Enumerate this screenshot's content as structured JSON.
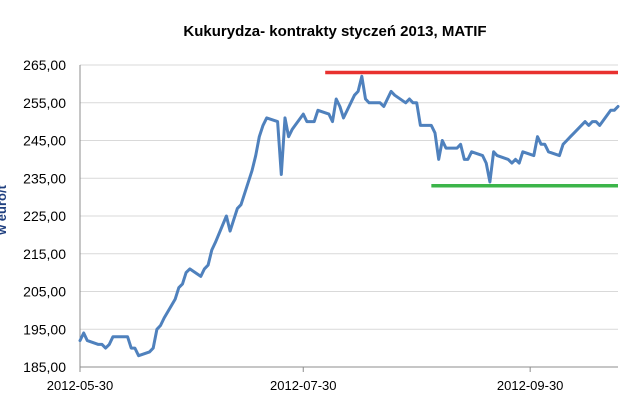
{
  "chart_data": {
    "type": "line",
    "title": "Kukurydza- kontrakty styczeń 2013, MATIF",
    "ylabel": "w euro/t",
    "ylim": [
      185,
      265
    ],
    "yticks": [
      185,
      195,
      205,
      215,
      225,
      235,
      245,
      255,
      265
    ],
    "ytick_labels": [
      "185,00",
      "195,00",
      "205,00",
      "215,00",
      "225,00",
      "235,00",
      "245,00",
      "255,00",
      "265,00"
    ],
    "xlim": [
      "2012-05-30",
      "2012-10-24"
    ],
    "xtick_labels": [
      "2012-05-30",
      "2012-07-30",
      "2012-09-30"
    ],
    "grid": "horizontal",
    "series": [
      {
        "color": "#4f81bd",
        "x": [
          "2012-05-30",
          "2012-05-31",
          "2012-06-01",
          "2012-06-04",
          "2012-06-05",
          "2012-06-06",
          "2012-06-07",
          "2012-06-08",
          "2012-06-11",
          "2012-06-12",
          "2012-06-13",
          "2012-06-14",
          "2012-06-15",
          "2012-06-18",
          "2012-06-19",
          "2012-06-20",
          "2012-06-21",
          "2012-06-22",
          "2012-06-25",
          "2012-06-26",
          "2012-06-27",
          "2012-06-28",
          "2012-06-29",
          "2012-07-02",
          "2012-07-03",
          "2012-07-04",
          "2012-07-05",
          "2012-07-06",
          "2012-07-09",
          "2012-07-10",
          "2012-07-11",
          "2012-07-12",
          "2012-07-13",
          "2012-07-16",
          "2012-07-17",
          "2012-07-18",
          "2012-07-19",
          "2012-07-20",
          "2012-07-23",
          "2012-07-24",
          "2012-07-25",
          "2012-07-26",
          "2012-07-27",
          "2012-07-30",
          "2012-07-31",
          "2012-08-01",
          "2012-08-02",
          "2012-08-03",
          "2012-08-06",
          "2012-08-07",
          "2012-08-08",
          "2012-08-09",
          "2012-08-10",
          "2012-08-13",
          "2012-08-14",
          "2012-08-15",
          "2012-08-16",
          "2012-08-17",
          "2012-08-20",
          "2012-08-21",
          "2012-08-22",
          "2012-08-23",
          "2012-08-24",
          "2012-08-27",
          "2012-08-28",
          "2012-08-29",
          "2012-08-30",
          "2012-08-31",
          "2012-09-03",
          "2012-09-04",
          "2012-09-05",
          "2012-09-06",
          "2012-09-07",
          "2012-09-10",
          "2012-09-11",
          "2012-09-12",
          "2012-09-13",
          "2012-09-14",
          "2012-09-17",
          "2012-09-18",
          "2012-09-19",
          "2012-09-20",
          "2012-09-21",
          "2012-09-24",
          "2012-09-25",
          "2012-09-26",
          "2012-09-27",
          "2012-09-28",
          "2012-10-01",
          "2012-10-02",
          "2012-10-03",
          "2012-10-04",
          "2012-10-05",
          "2012-10-08",
          "2012-10-09",
          "2012-10-10",
          "2012-10-11",
          "2012-10-12",
          "2012-10-15",
          "2012-10-16",
          "2012-10-17",
          "2012-10-18",
          "2012-10-19",
          "2012-10-22",
          "2012-10-23",
          "2012-10-24"
        ],
        "values": [
          192,
          194,
          192,
          191,
          191,
          190,
          191,
          193,
          193,
          193,
          190,
          190,
          188,
          189,
          190,
          195,
          196,
          198,
          203,
          206,
          207,
          210,
          211,
          209,
          211,
          212,
          216,
          218,
          225,
          221,
          224,
          227,
          228,
          237,
          241,
          246,
          249,
          251,
          250,
          236,
          251,
          246,
          248,
          252,
          250,
          250,
          250,
          253,
          252,
          250,
          256,
          254,
          251,
          257,
          258,
          262,
          256,
          255,
          255,
          254,
          256,
          258,
          257,
          255,
          256,
          255,
          255,
          249,
          249,
          247,
          240,
          245,
          243,
          243,
          244,
          240,
          240,
          242,
          241,
          239,
          234,
          242,
          241,
          240,
          239,
          240,
          239,
          242,
          241,
          246,
          244,
          244,
          242,
          241,
          244,
          245,
          246,
          247,
          250,
          249,
          250,
          250,
          249,
          253,
          253,
          254
        ]
      }
    ],
    "reference_lines": [
      {
        "color": "#e8312f",
        "y": 263,
        "x_start": "2012-08-05",
        "x_end": "2012-10-24"
      },
      {
        "color": "#3cb54a",
        "y": 233,
        "x_start": "2012-09-03",
        "x_end": "2012-10-24"
      }
    ]
  }
}
